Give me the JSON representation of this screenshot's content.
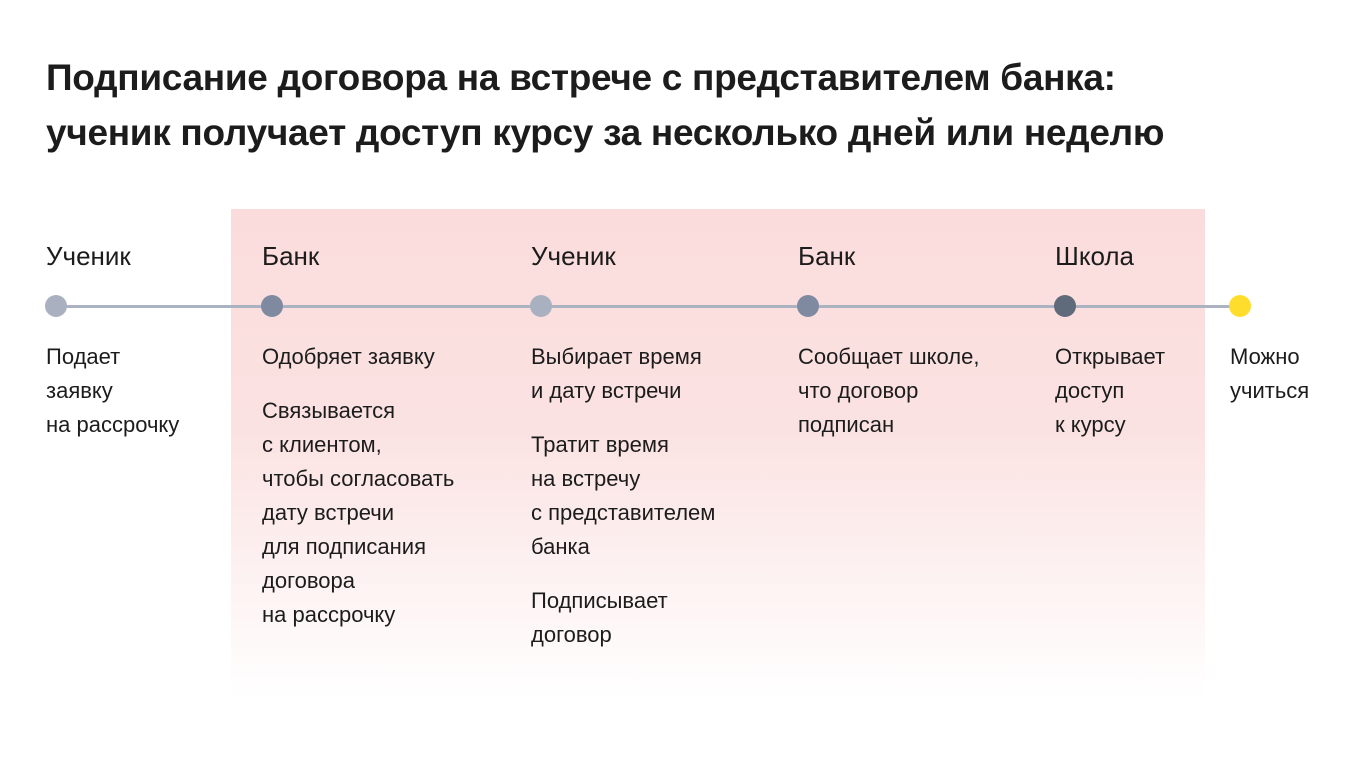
{
  "title": [
    "Подписание договора на встрече с представителем банка:",
    "ученик получает доступ курсу за несколько дней или неделю"
  ],
  "colors": {
    "band": "#fbdcdc",
    "line": "#abb2c1",
    "final_dot": "#ffdd2d"
  },
  "steps": [
    {
      "role": "Ученик",
      "dot_color": "#a9b1c0",
      "paragraphs": [
        [
          "Подает",
          "заявку",
          "на рассрочку"
        ]
      ]
    },
    {
      "role": "Банк",
      "dot_color": "#7f8aa0",
      "paragraphs": [
        [
          "Одобряет заявку"
        ],
        [
          "Связывается",
          "с клиентом,",
          "чтобы согласовать",
          "дату встречи",
          "для подписания",
          "договора",
          "на рассрочку"
        ]
      ]
    },
    {
      "role": "Ученик",
      "dot_color": "#a9b1c0",
      "paragraphs": [
        [
          "Выбирает время",
          "и дату встречи"
        ],
        [
          "Тратит время",
          "на встречу",
          "с представителем",
          "банка"
        ],
        [
          "Подписывает",
          "договор"
        ]
      ]
    },
    {
      "role": "Банк",
      "dot_color": "#7f8aa0",
      "paragraphs": [
        [
          "Сообщает школе,",
          "что договор",
          "подписан"
        ]
      ]
    },
    {
      "role": "Школа",
      "dot_color": "#5f6b7a",
      "paragraphs": [
        [
          "Открывает",
          "доступ",
          "к курсу"
        ]
      ]
    },
    {
      "role": "",
      "dot_color": "#ffdd2d",
      "paragraphs": [
        [
          "Можно",
          "учиться"
        ]
      ]
    }
  ]
}
